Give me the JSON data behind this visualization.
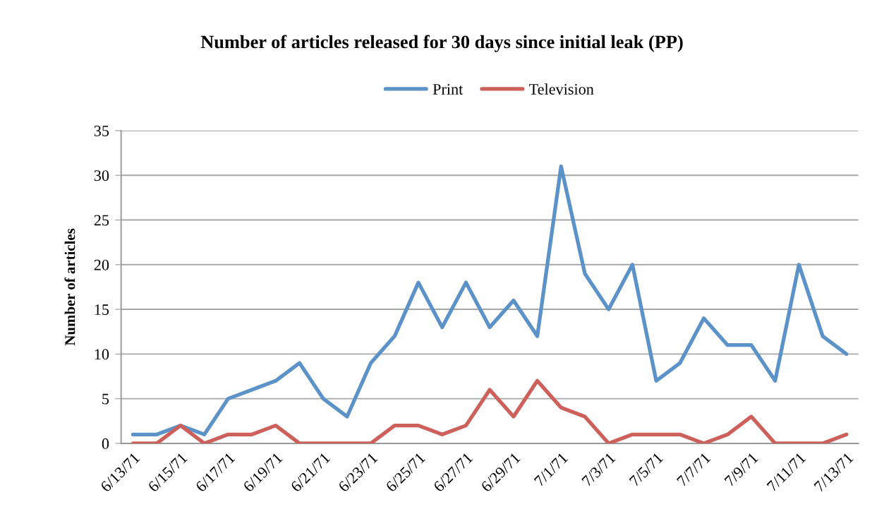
{
  "chart_data": {
    "type": "line",
    "title": "Number of articles released for 30 days since initial leak (PP)",
    "ylabel": "Number of articles",
    "categories": [
      "6/13/71",
      null,
      "6/15/71",
      null,
      "6/17/71",
      null,
      "6/19/71",
      null,
      "6/21/71",
      null,
      "6/23/71",
      null,
      "6/25/71",
      null,
      "6/27/71",
      null,
      "6/29/71",
      null,
      "7/1/71",
      null,
      "7/3/71",
      null,
      "7/5/71",
      null,
      "7/7/71",
      null,
      "7/9/71",
      null,
      "7/11/71",
      null,
      "7/13/71"
    ],
    "series": [
      {
        "name": "Print",
        "color": "#5b92c8",
        "values": [
          1,
          1,
          2,
          1,
          5,
          6,
          7,
          9,
          5,
          3,
          9,
          12,
          18,
          13,
          18,
          13,
          16,
          12,
          31,
          19,
          15,
          20,
          7,
          9,
          14,
          11,
          11,
          7,
          20,
          12,
          10
        ]
      },
      {
        "name": "Television",
        "color": "#cd605a",
        "values": [
          0,
          0,
          2,
          0,
          1,
          1,
          2,
          0,
          0,
          0,
          0,
          2,
          2,
          1,
          2,
          6,
          3,
          7,
          4,
          3,
          0,
          1,
          1,
          1,
          0,
          1,
          3,
          0,
          0,
          0,
          1
        ]
      }
    ],
    "ylim": [
      0,
      35
    ],
    "yticks": [
      0,
      5,
      10,
      15,
      20,
      25,
      30,
      35
    ],
    "grid": "y",
    "legend": "top",
    "marker": "none",
    "line_style": "solid"
  }
}
